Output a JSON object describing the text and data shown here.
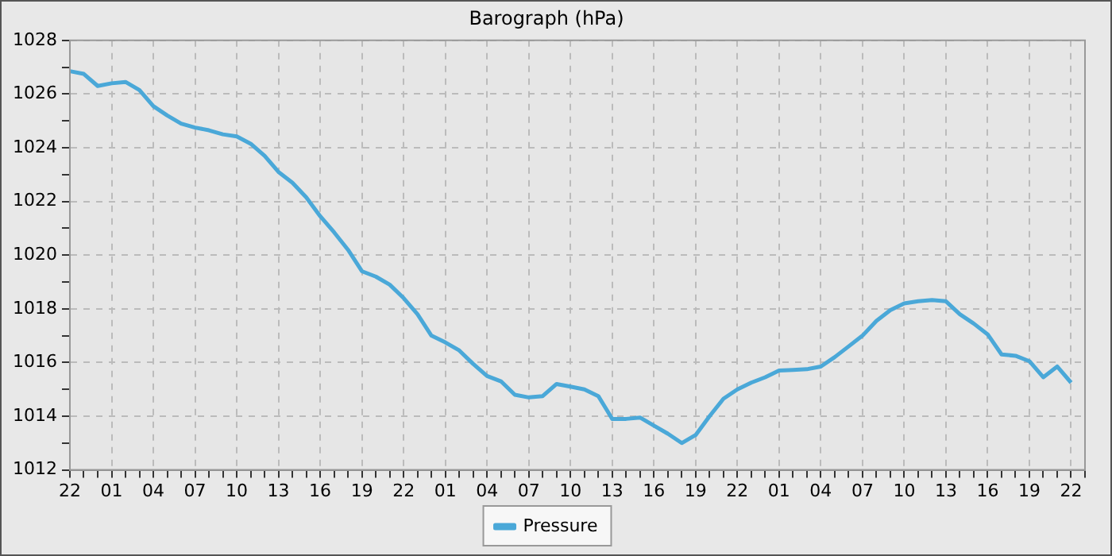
{
  "chart_data": {
    "type": "line",
    "title": "Barograph (hPa)",
    "categories": [
      "22",
      null,
      null,
      "01",
      null,
      null,
      "04",
      null,
      null,
      "07",
      null,
      null,
      "10",
      null,
      null,
      "13",
      null,
      null,
      "16",
      null,
      null,
      "19",
      null,
      null,
      "22",
      null,
      null,
      "01",
      null,
      null,
      "04",
      null,
      null,
      "07",
      null,
      null,
      "10",
      null,
      null,
      "13",
      null,
      null,
      "16",
      null,
      null,
      "19",
      null,
      null,
      "22",
      null,
      null,
      "01",
      null,
      null,
      "04",
      null,
      null,
      "07",
      null,
      null,
      "10",
      null,
      null,
      "13",
      null,
      null,
      "16",
      null,
      null,
      "19",
      null,
      null,
      "22",
      null
    ],
    "series": [
      {
        "name": "Pressure",
        "color": "#4aa8d8",
        "values": [
          1026.85,
          1026.75,
          1026.3,
          1026.4,
          1026.45,
          1026.15,
          1025.55,
          1025.2,
          1024.9,
          1024.75,
          1024.65,
          1024.5,
          1024.42,
          1024.15,
          1023.7,
          1023.1,
          1022.7,
          1022.15,
          1021.45,
          1020.85,
          1020.2,
          1019.4,
          1019.2,
          1018.9,
          1018.4,
          1017.8,
          1017,
          1016.75,
          1016.45,
          1015.95,
          1015.5,
          1015.3,
          1014.8,
          1014.7,
          1014.75,
          1015.2,
          1015.1,
          1015,
          1014.75,
          1013.9,
          1013.9,
          1013.95,
          1013.65,
          1013.35,
          1013,
          1013.3,
          1014,
          1014.65,
          1015,
          1015.25,
          1015.45,
          1015.7,
          1015.72,
          1015.75,
          1015.85,
          1016.2,
          1016.6,
          1017,
          1017.55,
          1017.95,
          1018.2,
          1018.28,
          1018.33,
          1018.28,
          1017.8,
          1017.45,
          1017.05,
          1016.3,
          1016.25,
          1016.05,
          1015.45,
          1015.85,
          1015.25,
          null
        ]
      }
    ],
    "ylim": [
      1012,
      1028
    ],
    "yticks": [
      1012,
      {
        "value": 1013,
        "label": null
      },
      1014,
      {
        "value": 1015,
        "label": null
      },
      1016,
      {
        "value": 1017,
        "label": null
      },
      1018,
      {
        "value": 1019,
        "label": null
      },
      1020,
      {
        "value": 1021,
        "label": null
      },
      1022,
      {
        "value": 1023,
        "label": null
      },
      1024,
      {
        "value": 1025,
        "label": null
      },
      1026,
      {
        "value": 1027,
        "label": null
      },
      1028
    ],
    "grid": true,
    "legend": "bottom",
    "marker": "none",
    "line_style": "solid"
  }
}
